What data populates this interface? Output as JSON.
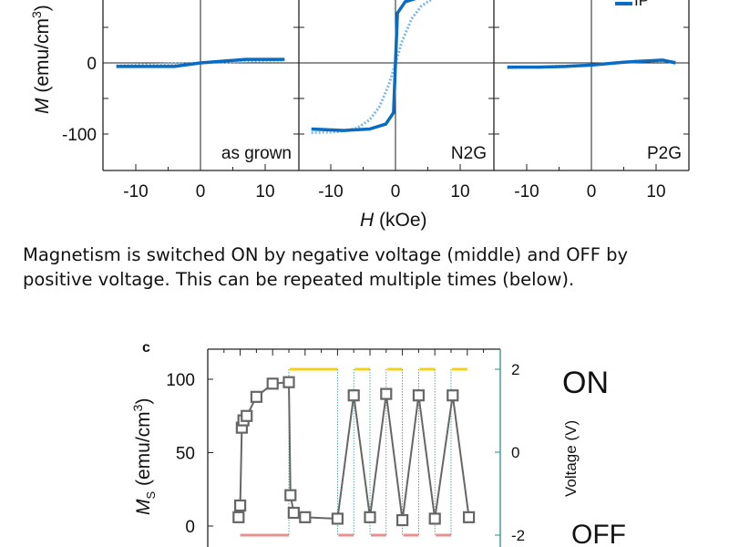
{
  "caption": {
    "line1": "Magnetism is switched ON by negative voltage (middle) and OFF by",
    "line2": "positive voltage. This can be repeated multiple times (below)."
  },
  "chart_data": [
    {
      "type": "line",
      "ylabel": "M (emu/cm3)",
      "ylabel_parts": {
        "sym": "M",
        "unit": " (emu/cm",
        "exp": "3",
        "close": ")"
      },
      "xlabel_parts": {
        "sym": "H",
        "unit": " (kOe)"
      },
      "xlim": [
        -15,
        15
      ],
      "ylim": [
        -150,
        88
      ],
      "yticks": [
        "0",
        "-100"
      ],
      "xticks": [
        "-10",
        "0",
        "10"
      ],
      "legend": [
        "IP"
      ],
      "colors": {
        "solid": "#0a6cc0",
        "dotted": "#7fb8e6"
      },
      "panels": [
        {
          "label": "as grown",
          "solid": [
            [
              -13,
              -5
            ],
            [
              -8,
              -5
            ],
            [
              -4,
              -5
            ],
            [
              0,
              0
            ],
            [
              7,
              5
            ],
            [
              13,
              5
            ]
          ],
          "dotted": [
            [
              -13,
              -4
            ],
            [
              0,
              0
            ],
            [
              13,
              4
            ]
          ]
        },
        {
          "label": "N2G",
          "solid": [
            [
              -13,
              -93
            ],
            [
              -8,
              -95
            ],
            [
              -4,
              -93
            ],
            [
              -1.5,
              -86
            ],
            [
              -0.3,
              -70
            ],
            [
              0,
              0
            ],
            [
              0.3,
              70
            ],
            [
              1.5,
              86
            ],
            [
              4,
              93
            ],
            [
              8,
              95
            ],
            [
              13,
              97
            ]
          ],
          "dotted": [
            [
              -13,
              -98
            ],
            [
              -9,
              -97
            ],
            [
              -6,
              -92
            ],
            [
              -4,
              -80
            ],
            [
              -2.5,
              -62
            ],
            [
              -1,
              -30
            ],
            [
              0,
              0
            ],
            [
              1,
              30
            ],
            [
              2.5,
              62
            ],
            [
              4,
              80
            ],
            [
              6,
              92
            ],
            [
              9,
              97
            ],
            [
              13,
              98
            ]
          ]
        },
        {
          "label": "P2G",
          "solid": [
            [
              -13,
              -6
            ],
            [
              -8,
              -6
            ],
            [
              -4,
              -5
            ],
            [
              0,
              -3
            ],
            [
              5,
              1
            ],
            [
              11,
              4
            ],
            [
              13,
              0
            ]
          ],
          "dotted": [
            [
              -13,
              -7
            ],
            [
              0,
              -3
            ],
            [
              7,
              3
            ],
            [
              13,
              2
            ]
          ]
        }
      ]
    },
    {
      "type": "line",
      "panel_label": "c",
      "ylabel_parts": {
        "sym": "M",
        "sub": "S",
        "unit": " (emu/cm",
        "exp": "3",
        "close": ")"
      },
      "y2label": "Voltage (V)",
      "ylim": [
        -12,
        120
      ],
      "yticks": [
        100,
        50,
        0
      ],
      "y2lim": [
        -2.2,
        2.6
      ],
      "y2ticks": [
        2,
        0,
        -2
      ],
      "x": [
        1.9,
        2.0,
        2.1,
        2.2,
        2.4,
        3.0,
        4.0,
        5.0,
        5.1,
        5.3,
        6.0,
        8.0,
        9.0,
        10.0,
        11.0,
        12.0,
        13.0,
        14.0,
        15.1,
        16.1
      ],
      "values": [
        6,
        14,
        67,
        72,
        75,
        88,
        97,
        98,
        21,
        9,
        6,
        5,
        89,
        6,
        90,
        4,
        89,
        5,
        89,
        6
      ],
      "voltage": [
        {
          "from": 2,
          "to": 5,
          "v": -2
        },
        {
          "from": 5,
          "to": 8,
          "v": 2
        },
        {
          "from": 8,
          "to": 9,
          "v": -2
        },
        {
          "from": 9,
          "to": 10,
          "v": 2
        },
        {
          "from": 10,
          "to": 11,
          "v": -2
        },
        {
          "from": 11,
          "to": 12,
          "v": 2
        },
        {
          "from": 12,
          "to": 13,
          "v": -2
        },
        {
          "from": 13,
          "to": 14,
          "v": 2
        },
        {
          "from": 14,
          "to": 15,
          "v": -2
        },
        {
          "from": 15,
          "to": 16,
          "v": 2
        }
      ],
      "annotations": {
        "on": "ON",
        "off": "OFF"
      },
      "colors": {
        "marker": "#666666",
        "on": "#f2d31b",
        "off": "#e89090",
        "axis2": "#2a8f8a"
      }
    }
  ]
}
